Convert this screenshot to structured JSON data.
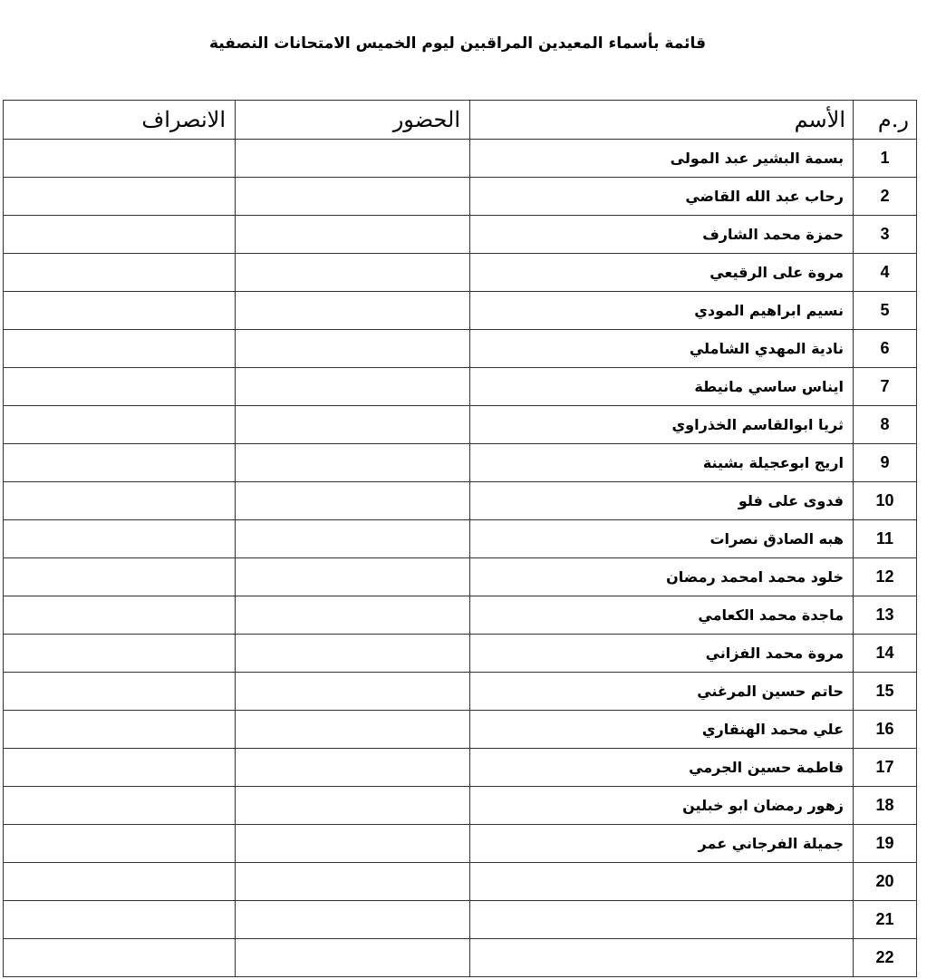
{
  "title": "قائمة بأسماء المعيدين المراقبين ليوم الخميس الامتحانات النصفية",
  "headers": {
    "num": "ر.م",
    "name": "الأسم",
    "attendance": "الحضور",
    "departure": "الانصراف"
  },
  "rows": [
    {
      "num": "1",
      "name": "بسمة البشير عبد المولى"
    },
    {
      "num": "2",
      "name": "رحاب عبد الله القاضي"
    },
    {
      "num": "3",
      "name": "حمزة محمد الشارف"
    },
    {
      "num": "4",
      "name": "مروة على الرقيعي"
    },
    {
      "num": "5",
      "name": "نسيم ابراهيم المودي"
    },
    {
      "num": "6",
      "name": "نادية المهدي الشاملي"
    },
    {
      "num": "7",
      "name": "ايناس ساسي مانيطة"
    },
    {
      "num": "8",
      "name": "ثريا ابوالقاسم الخذراوي"
    },
    {
      "num": "9",
      "name": "اريج ابوعجيلة بشينة"
    },
    {
      "num": "10",
      "name": "فدوى على فلو"
    },
    {
      "num": "11",
      "name": "هبه الصادق نصرات"
    },
    {
      "num": "12",
      "name": "خلود محمد امحمد رمضان"
    },
    {
      "num": "13",
      "name": "ماجدة محمد الكعامي"
    },
    {
      "num": "14",
      "name": "مروة محمد الفزاني"
    },
    {
      "num": "15",
      "name": "حاتم حسين المرغني"
    },
    {
      "num": "16",
      "name": "علي محمد الهنقاري"
    },
    {
      "num": "17",
      "name": "فاطمة حسين الجرمي"
    },
    {
      "num": "18",
      "name": "زهور رمضان ابو خبلين"
    },
    {
      "num": "19",
      "name": "جميلة الفرجاني عمر"
    },
    {
      "num": "20",
      "name": ""
    },
    {
      "num": "21",
      "name": ""
    },
    {
      "num": "22",
      "name": ""
    }
  ]
}
